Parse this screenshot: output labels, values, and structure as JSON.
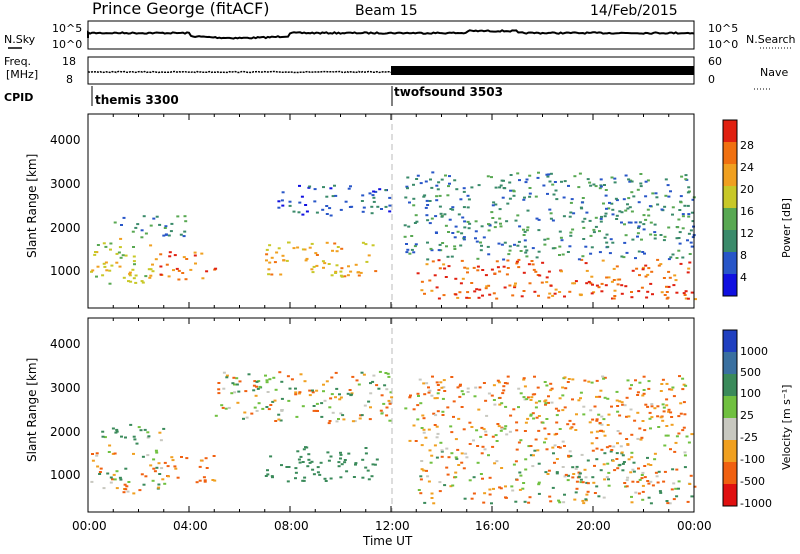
{
  "header": {
    "station": "Prince George (fitACF)",
    "beam": "Beam 15",
    "date": "14/Feb/2015"
  },
  "sky_panel": {
    "left_label": "N.Sky",
    "right_label": "N.Search",
    "left_ticks": [
      "10^5",
      "10^0"
    ],
    "right_ticks": [
      "10^5",
      "10^0"
    ]
  },
  "freq_panel": {
    "left_label_1": "Freq.",
    "left_label_2": "[MHz]",
    "right_label": "Nave",
    "left_ticks": [
      "18",
      "8"
    ],
    "right_ticks": [
      "60",
      "0"
    ]
  },
  "cpid": {
    "label": "CPID",
    "modes": [
      {
        "name": "themis 3300",
        "start_hour": 0
      },
      {
        "name": "twofsound 3503",
        "start_hour": 12
      }
    ]
  },
  "x_axis": {
    "title": "Time UT",
    "ticks": [
      "00:00",
      "04:00",
      "08:00",
      "12:00",
      "16:00",
      "20:00",
      "00:00"
    ]
  },
  "chart_data": [
    {
      "type": "heatmap",
      "quantity": "power",
      "xlabel": "Time UT",
      "ylabel": "Slant Range [km]",
      "y_ticks": [
        "1000",
        "2000",
        "3000",
        "4000"
      ],
      "xlim": [
        0,
        24
      ],
      "ylim": [
        180,
        4600
      ],
      "colorbar_label": "Power [dB]",
      "colorbar_ticks": [
        "4",
        "8",
        "12",
        "16",
        "20",
        "24",
        "28"
      ],
      "colorscale": [
        "#1010e0",
        "#2856c8",
        "#3a8a6a",
        "#58a852",
        "#c8c828",
        "#f0a020",
        "#f07010",
        "#e02010"
      ],
      "features": [
        {
          "hours": [
            0.0,
            2.8
          ],
          "range_km": [
            750,
            1800
          ],
          "level_db": 18
        },
        {
          "hours": [
            2.8,
            5.0
          ],
          "range_km": [
            850,
            1500
          ],
          "level_db": 26
        },
        {
          "hours": [
            1.0,
            4.0
          ],
          "range_km": [
            1800,
            2300
          ],
          "level_db": 10
        },
        {
          "hours": [
            7.0,
            11.5
          ],
          "range_km": [
            900,
            1700
          ],
          "level_db": 22
        },
        {
          "hours": [
            7.5,
            12.0
          ],
          "range_km": [
            2300,
            3000
          ],
          "level_db": 6
        },
        {
          "hours": [
            13.0,
            24.0
          ],
          "range_km": [
            400,
            1300
          ],
          "level_db": 27
        },
        {
          "hours": [
            12.5,
            24.0
          ],
          "range_km": [
            1300,
            3300
          ],
          "level_db": 10
        }
      ]
    },
    {
      "type": "heatmap",
      "quantity": "velocity",
      "xlabel": "Time UT",
      "ylabel": "Slant Range [km]",
      "y_ticks": [
        "1000",
        "2000",
        "3000",
        "4000"
      ],
      "xlim": [
        0,
        24
      ],
      "ylim": [
        180,
        4600
      ],
      "colorbar_label": "Velocity [m s⁻¹]",
      "colorbar_ticks": [
        "1000",
        "500",
        "100",
        "25",
        "-25",
        "-100",
        "-500",
        "-1000"
      ],
      "colorscale": [
        "#2040c0",
        "#3a70a0",
        "#3a8a5a",
        "#70c040",
        "#c8c8c0",
        "#f0a020",
        "#f06010",
        "#e01010"
      ],
      "features": [
        {
          "hours": [
            0.0,
            3.0
          ],
          "range_km": [
            600,
            1600
          ],
          "level_ms": 0
        },
        {
          "hours": [
            0.5,
            3.0
          ],
          "range_km": [
            1700,
            2200
          ],
          "level_ms": 150
        },
        {
          "hours": [
            3.0,
            5.0
          ],
          "range_km": [
            850,
            1500
          ],
          "level_ms": -200
        },
        {
          "hours": [
            7.0,
            11.5
          ],
          "range_km": [
            900,
            1700
          ],
          "level_ms": 300
        },
        {
          "hours": [
            5.0,
            12.0
          ],
          "range_km": [
            2200,
            3400
          ],
          "level_ms": 0
        },
        {
          "hours": [
            13.0,
            24.0
          ],
          "range_km": [
            400,
            1600
          ],
          "level_ms": 0
        },
        {
          "hours": [
            12.5,
            24.0
          ],
          "range_km": [
            1600,
            3300
          ],
          "level_ms": -100
        }
      ]
    }
  ]
}
